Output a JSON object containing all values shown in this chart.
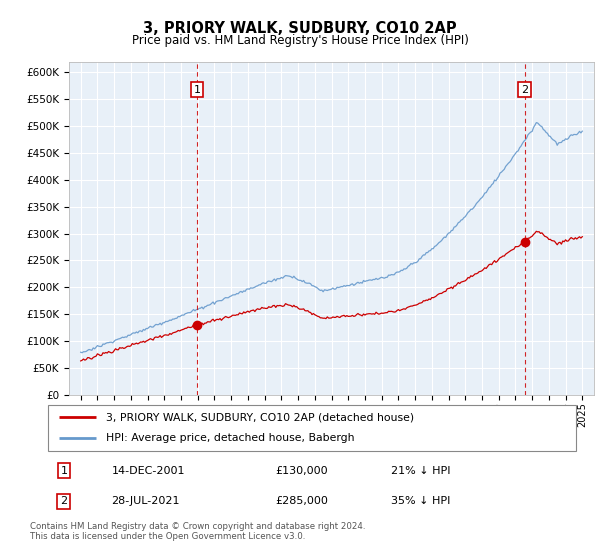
{
  "title": "3, PRIORY WALK, SUDBURY, CO10 2AP",
  "subtitle": "Price paid vs. HM Land Registry's House Price Index (HPI)",
  "background_color": "#ffffff",
  "plot_bg_color": "#e8f0f8",
  "ylim": [
    0,
    620000
  ],
  "yticks": [
    0,
    50000,
    100000,
    150000,
    200000,
    250000,
    300000,
    350000,
    400000,
    450000,
    500000,
    550000,
    600000
  ],
  "ytick_labels": [
    "£0",
    "£50K",
    "£100K",
    "£150K",
    "£200K",
    "£250K",
    "£300K",
    "£350K",
    "£400K",
    "£450K",
    "£500K",
    "£550K",
    "£600K"
  ],
  "hpi_color": "#6699cc",
  "price_color": "#cc0000",
  "sale1_date": 2001.958,
  "sale1_price": 130000,
  "sale2_date": 2021.556,
  "sale2_price": 285000,
  "legend_line1": "3, PRIORY WALK, SUDBURY, CO10 2AP (detached house)",
  "legend_line2": "HPI: Average price, detached house, Babergh",
  "annot1_date": "14-DEC-2001",
  "annot1_price": "£130,000",
  "annot1_pct": "21% ↓ HPI",
  "annot2_date": "28-JUL-2021",
  "annot2_price": "£285,000",
  "annot2_pct": "35% ↓ HPI",
  "footer": "Contains HM Land Registry data © Crown copyright and database right 2024.\nThis data is licensed under the Open Government Licence v3.0."
}
